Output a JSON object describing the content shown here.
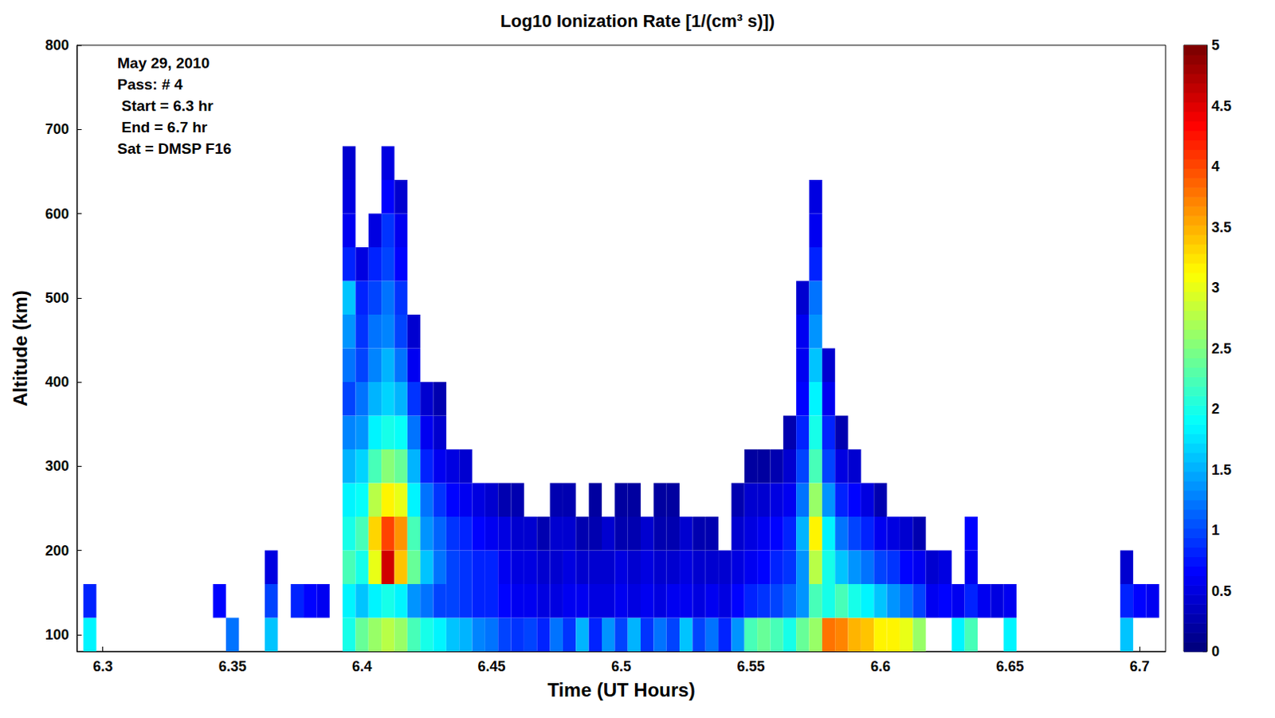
{
  "chart_data": {
    "type": "heatmap",
    "title": "Log10 Ionization Rate [1/(cm³ s)])",
    "xlabel": "Time (UT Hours)",
    "ylabel": "Altitude (km)",
    "annotations": [
      "May 29, 2010",
      "Pass: # 4",
      " Start = 6.3 hr",
      " End = 6.7 hr",
      "Sat = DMSP F16"
    ],
    "xlim": [
      6.29,
      6.71
    ],
    "xticks": [
      6.3,
      6.35,
      6.4,
      6.45,
      6.5,
      6.55,
      6.6,
      6.65,
      6.7
    ],
    "ylim": [
      80,
      800
    ],
    "yticks": [
      100,
      200,
      300,
      400,
      500,
      600,
      700,
      800
    ],
    "colorbar": {
      "range": [
        0,
        5
      ],
      "ticks": [
        0,
        0.5,
        1,
        1.5,
        2,
        2.5,
        3,
        3.5,
        4,
        4.5,
        5
      ]
    },
    "cells": [
      [
        6.295,
        100,
        1.8
      ],
      [
        6.295,
        140,
        0.8
      ],
      [
        6.345,
        140,
        0.7
      ],
      [
        6.35,
        100,
        1.2
      ],
      [
        6.365,
        100,
        1.6
      ],
      [
        6.365,
        140,
        1.0
      ],
      [
        6.365,
        180,
        0.5
      ],
      [
        6.375,
        140,
        0.8
      ],
      [
        6.38,
        140,
        0.7
      ],
      [
        6.385,
        140,
        0.6
      ],
      [
        6.395,
        100,
        2.0
      ],
      [
        6.395,
        140,
        1.8
      ],
      [
        6.395,
        180,
        2.2
      ],
      [
        6.395,
        220,
        2.0
      ],
      [
        6.395,
        260,
        1.8
      ],
      [
        6.395,
        300,
        1.5
      ],
      [
        6.395,
        340,
        1.3
      ],
      [
        6.395,
        380,
        1.0
      ],
      [
        6.395,
        420,
        1.2
      ],
      [
        6.395,
        460,
        1.4
      ],
      [
        6.395,
        500,
        1.6
      ],
      [
        6.395,
        540,
        0.8
      ],
      [
        6.395,
        580,
        0.6
      ],
      [
        6.395,
        620,
        0.5
      ],
      [
        6.395,
        660,
        0.4
      ],
      [
        6.4,
        100,
        2.4
      ],
      [
        6.4,
        140,
        1.6
      ],
      [
        6.4,
        180,
        2.0
      ],
      [
        6.4,
        220,
        2.2
      ],
      [
        6.4,
        260,
        1.9
      ],
      [
        6.4,
        300,
        1.7
      ],
      [
        6.4,
        340,
        1.4
      ],
      [
        6.4,
        380,
        1.2
      ],
      [
        6.4,
        420,
        1.0
      ],
      [
        6.4,
        460,
        0.9
      ],
      [
        6.4,
        500,
        0.8
      ],
      [
        6.4,
        540,
        0.5
      ],
      [
        6.405,
        100,
        2.6
      ],
      [
        6.405,
        140,
        1.8
      ],
      [
        6.405,
        180,
        3.0
      ],
      [
        6.405,
        220,
        3.3
      ],
      [
        6.405,
        260,
        2.8
      ],
      [
        6.405,
        300,
        2.2
      ],
      [
        6.405,
        340,
        1.8
      ],
      [
        6.405,
        380,
        1.5
      ],
      [
        6.405,
        420,
        1.3
      ],
      [
        6.405,
        460,
        1.2
      ],
      [
        6.405,
        500,
        1.0
      ],
      [
        6.405,
        540,
        0.8
      ],
      [
        6.405,
        580,
        0.5
      ],
      [
        6.41,
        100,
        2.8
      ],
      [
        6.41,
        140,
        2.0
      ],
      [
        6.41,
        180,
        4.6
      ],
      [
        6.41,
        220,
        4.0
      ],
      [
        6.41,
        260,
        3.2
      ],
      [
        6.41,
        300,
        2.5
      ],
      [
        6.41,
        340,
        2.0
      ],
      [
        6.41,
        380,
        1.7
      ],
      [
        6.41,
        420,
        1.5
      ],
      [
        6.41,
        460,
        1.3
      ],
      [
        6.41,
        500,
        1.2
      ],
      [
        6.41,
        540,
        1.0
      ],
      [
        6.41,
        580,
        0.9
      ],
      [
        6.41,
        620,
        0.7
      ],
      [
        6.41,
        660,
        0.5
      ],
      [
        6.415,
        100,
        2.6
      ],
      [
        6.415,
        140,
        1.8
      ],
      [
        6.415,
        180,
        3.4
      ],
      [
        6.415,
        220,
        3.6
      ],
      [
        6.415,
        260,
        3.0
      ],
      [
        6.415,
        300,
        2.4
      ],
      [
        6.415,
        340,
        1.9
      ],
      [
        6.415,
        380,
        1.5
      ],
      [
        6.415,
        420,
        1.2
      ],
      [
        6.415,
        460,
        1.0
      ],
      [
        6.415,
        500,
        0.9
      ],
      [
        6.415,
        540,
        0.7
      ],
      [
        6.415,
        580,
        0.6
      ],
      [
        6.415,
        620,
        0.4
      ],
      [
        6.42,
        100,
        2.2
      ],
      [
        6.42,
        140,
        1.4
      ],
      [
        6.42,
        180,
        2.4
      ],
      [
        6.42,
        220,
        2.2
      ],
      [
        6.42,
        260,
        1.8
      ],
      [
        6.42,
        300,
        1.5
      ],
      [
        6.42,
        340,
        1.2
      ],
      [
        6.42,
        380,
        0.9
      ],
      [
        6.42,
        420,
        0.6
      ],
      [
        6.42,
        460,
        0.4
      ],
      [
        6.425,
        100,
        2.0
      ],
      [
        6.425,
        140,
        1.2
      ],
      [
        6.425,
        180,
        1.6
      ],
      [
        6.425,
        220,
        1.4
      ],
      [
        6.425,
        260,
        1.2
      ],
      [
        6.425,
        300,
        0.8
      ],
      [
        6.425,
        340,
        0.6
      ],
      [
        6.425,
        380,
        0.4
      ],
      [
        6.43,
        100,
        1.8
      ],
      [
        6.43,
        140,
        1.0
      ],
      [
        6.43,
        180,
        1.2
      ],
      [
        6.43,
        220,
        1.1
      ],
      [
        6.43,
        260,
        0.9
      ],
      [
        6.43,
        300,
        0.6
      ],
      [
        6.43,
        340,
        0.4
      ],
      [
        6.43,
        380,
        0.3
      ],
      [
        6.435,
        100,
        1.6
      ],
      [
        6.435,
        140,
        1.0
      ],
      [
        6.435,
        180,
        1.0
      ],
      [
        6.435,
        220,
        0.9
      ],
      [
        6.435,
        260,
        0.7
      ],
      [
        6.435,
        300,
        0.5
      ],
      [
        6.44,
        100,
        1.5
      ],
      [
        6.44,
        140,
        0.9
      ],
      [
        6.44,
        180,
        0.9
      ],
      [
        6.44,
        220,
        0.8
      ],
      [
        6.44,
        260,
        0.6
      ],
      [
        6.44,
        300,
        0.4
      ],
      [
        6.445,
        100,
        1.3
      ],
      [
        6.445,
        140,
        0.8
      ],
      [
        6.445,
        180,
        0.8
      ],
      [
        6.445,
        220,
        0.7
      ],
      [
        6.445,
        260,
        0.5
      ],
      [
        6.45,
        100,
        1.2
      ],
      [
        6.45,
        140,
        0.8
      ],
      [
        6.45,
        180,
        0.8
      ],
      [
        6.45,
        220,
        0.6
      ],
      [
        6.45,
        260,
        0.4
      ],
      [
        6.455,
        100,
        1.0
      ],
      [
        6.455,
        140,
        0.7
      ],
      [
        6.455,
        180,
        0.6
      ],
      [
        6.455,
        220,
        0.5
      ],
      [
        6.455,
        260,
        0.3
      ],
      [
        6.46,
        100,
        0.9
      ],
      [
        6.46,
        140,
        0.6
      ],
      [
        6.46,
        180,
        0.5
      ],
      [
        6.46,
        220,
        0.4
      ],
      [
        6.46,
        260,
        0.3
      ],
      [
        6.465,
        100,
        1.0
      ],
      [
        6.465,
        140,
        0.6
      ],
      [
        6.465,
        180,
        0.5
      ],
      [
        6.465,
        220,
        0.4
      ],
      [
        6.47,
        100,
        0.8
      ],
      [
        6.47,
        140,
        0.5
      ],
      [
        6.47,
        180,
        0.4
      ],
      [
        6.47,
        220,
        0.3
      ],
      [
        6.475,
        100,
        1.2
      ],
      [
        6.475,
        140,
        0.5
      ],
      [
        6.475,
        180,
        0.4
      ],
      [
        6.475,
        220,
        0.4
      ],
      [
        6.475,
        260,
        0.3
      ],
      [
        6.48,
        100,
        0.9
      ],
      [
        6.48,
        140,
        0.6
      ],
      [
        6.48,
        180,
        0.5
      ],
      [
        6.48,
        220,
        0.4
      ],
      [
        6.48,
        260,
        0.3
      ],
      [
        6.485,
        100,
        1.5
      ],
      [
        6.485,
        140,
        0.6
      ],
      [
        6.485,
        180,
        0.4
      ],
      [
        6.485,
        220,
        0.3
      ],
      [
        6.49,
        100,
        0.8
      ],
      [
        6.49,
        140,
        0.5
      ],
      [
        6.49,
        180,
        0.4
      ],
      [
        6.49,
        220,
        0.3
      ],
      [
        6.49,
        260,
        0.2
      ],
      [
        6.495,
        100,
        1.4
      ],
      [
        6.495,
        140,
        0.5
      ],
      [
        6.495,
        180,
        0.4
      ],
      [
        6.495,
        220,
        0.4
      ],
      [
        6.5,
        100,
        1.0
      ],
      [
        6.5,
        140,
        0.6
      ],
      [
        6.5,
        180,
        0.5
      ],
      [
        6.5,
        220,
        0.3
      ],
      [
        6.5,
        260,
        0.2
      ],
      [
        6.505,
        100,
        1.5
      ],
      [
        6.505,
        140,
        0.5
      ],
      [
        6.505,
        180,
        0.4
      ],
      [
        6.505,
        220,
        0.3
      ],
      [
        6.505,
        260,
        0.2
      ],
      [
        6.51,
        100,
        0.9
      ],
      [
        6.51,
        140,
        0.6
      ],
      [
        6.51,
        180,
        0.5
      ],
      [
        6.51,
        220,
        0.4
      ],
      [
        6.515,
        100,
        1.2
      ],
      [
        6.515,
        140,
        0.5
      ],
      [
        6.515,
        180,
        0.4
      ],
      [
        6.515,
        220,
        0.3
      ],
      [
        6.515,
        260,
        0.2
      ],
      [
        6.52,
        100,
        1.0
      ],
      [
        6.52,
        140,
        0.6
      ],
      [
        6.52,
        180,
        0.4
      ],
      [
        6.52,
        220,
        0.3
      ],
      [
        6.52,
        260,
        0.2
      ],
      [
        6.525,
        100,
        1.6
      ],
      [
        6.525,
        140,
        0.6
      ],
      [
        6.525,
        180,
        0.5
      ],
      [
        6.525,
        220,
        0.4
      ],
      [
        6.53,
        100,
        1.0
      ],
      [
        6.53,
        140,
        0.5
      ],
      [
        6.53,
        180,
        0.4
      ],
      [
        6.53,
        220,
        0.3
      ],
      [
        6.535,
        100,
        1.2
      ],
      [
        6.535,
        140,
        0.6
      ],
      [
        6.535,
        180,
        0.4
      ],
      [
        6.535,
        220,
        0.3
      ],
      [
        6.54,
        100,
        0.8
      ],
      [
        6.54,
        140,
        0.5
      ],
      [
        6.54,
        180,
        0.4
      ],
      [
        6.545,
        100,
        1.4
      ],
      [
        6.545,
        140,
        0.7
      ],
      [
        6.545,
        180,
        0.5
      ],
      [
        6.545,
        220,
        0.4
      ],
      [
        6.545,
        260,
        0.3
      ],
      [
        6.55,
        100,
        2.2
      ],
      [
        6.55,
        140,
        0.8
      ],
      [
        6.55,
        180,
        0.6
      ],
      [
        6.55,
        220,
        0.5
      ],
      [
        6.55,
        260,
        0.4
      ],
      [
        6.55,
        300,
        0.2
      ],
      [
        6.555,
        100,
        2.4
      ],
      [
        6.555,
        140,
        0.9
      ],
      [
        6.555,
        180,
        0.7
      ],
      [
        6.555,
        220,
        0.6
      ],
      [
        6.555,
        260,
        0.4
      ],
      [
        6.555,
        300,
        0.2
      ],
      [
        6.56,
        100,
        2.2
      ],
      [
        6.56,
        140,
        1.0
      ],
      [
        6.56,
        180,
        0.8
      ],
      [
        6.56,
        220,
        0.7
      ],
      [
        6.56,
        260,
        0.5
      ],
      [
        6.56,
        300,
        0.3
      ],
      [
        6.565,
        100,
        2.0
      ],
      [
        6.565,
        140,
        1.1
      ],
      [
        6.565,
        180,
        0.9
      ],
      [
        6.565,
        220,
        0.8
      ],
      [
        6.565,
        260,
        0.6
      ],
      [
        6.565,
        300,
        0.4
      ],
      [
        6.565,
        340,
        0.3
      ],
      [
        6.57,
        100,
        2.4
      ],
      [
        6.57,
        140,
        1.4
      ],
      [
        6.57,
        180,
        1.4
      ],
      [
        6.57,
        220,
        1.5
      ],
      [
        6.57,
        260,
        1.2
      ],
      [
        6.57,
        300,
        1.0
      ],
      [
        6.57,
        340,
        0.8
      ],
      [
        6.57,
        380,
        0.7
      ],
      [
        6.57,
        420,
        0.6
      ],
      [
        6.57,
        460,
        0.6
      ],
      [
        6.57,
        500,
        0.4
      ],
      [
        6.575,
        100,
        2.6
      ],
      [
        6.575,
        140,
        2.2
      ],
      [
        6.575,
        180,
        2.8
      ],
      [
        6.575,
        220,
        3.2
      ],
      [
        6.575,
        260,
        2.6
      ],
      [
        6.575,
        300,
        2.2
      ],
      [
        6.575,
        340,
        2.0
      ],
      [
        6.575,
        380,
        1.8
      ],
      [
        6.575,
        420,
        1.6
      ],
      [
        6.575,
        460,
        1.4
      ],
      [
        6.575,
        500,
        1.2
      ],
      [
        6.575,
        540,
        0.8
      ],
      [
        6.575,
        580,
        0.6
      ],
      [
        6.575,
        620,
        0.5
      ],
      [
        6.58,
        100,
        3.8
      ],
      [
        6.58,
        140,
        2.0
      ],
      [
        6.58,
        180,
        2.0
      ],
      [
        6.58,
        220,
        1.8
      ],
      [
        6.58,
        260,
        1.4
      ],
      [
        6.58,
        300,
        1.0
      ],
      [
        6.58,
        340,
        0.8
      ],
      [
        6.58,
        380,
        0.6
      ],
      [
        6.58,
        420,
        0.4
      ],
      [
        6.585,
        100,
        3.7
      ],
      [
        6.585,
        140,
        2.2
      ],
      [
        6.585,
        180,
        1.6
      ],
      [
        6.585,
        220,
        1.2
      ],
      [
        6.585,
        260,
        0.8
      ],
      [
        6.585,
        300,
        0.5
      ],
      [
        6.585,
        340,
        0.3
      ],
      [
        6.59,
        100,
        3.5
      ],
      [
        6.59,
        140,
        2.0
      ],
      [
        6.59,
        180,
        1.4
      ],
      [
        6.59,
        220,
        1.0
      ],
      [
        6.59,
        260,
        0.7
      ],
      [
        6.59,
        300,
        0.4
      ],
      [
        6.595,
        100,
        3.4
      ],
      [
        6.595,
        140,
        1.8
      ],
      [
        6.595,
        180,
        1.2
      ],
      [
        6.595,
        220,
        0.8
      ],
      [
        6.595,
        260,
        0.5
      ],
      [
        6.6,
        100,
        3.2
      ],
      [
        6.6,
        140,
        1.6
      ],
      [
        6.6,
        180,
        1.0
      ],
      [
        6.6,
        220,
        0.6
      ],
      [
        6.6,
        260,
        0.3
      ],
      [
        6.605,
        100,
        3.2
      ],
      [
        6.605,
        140,
        1.4
      ],
      [
        6.605,
        180,
        0.9
      ],
      [
        6.605,
        220,
        0.5
      ],
      [
        6.61,
        100,
        3.0
      ],
      [
        6.61,
        140,
        1.2
      ],
      [
        6.61,
        180,
        0.7
      ],
      [
        6.61,
        220,
        0.4
      ],
      [
        6.615,
        100,
        2.6
      ],
      [
        6.615,
        140,
        1.0
      ],
      [
        6.615,
        180,
        0.6
      ],
      [
        6.615,
        220,
        0.3
      ],
      [
        6.62,
        140,
        0.6
      ],
      [
        6.62,
        180,
        0.4
      ],
      [
        6.625,
        140,
        0.7
      ],
      [
        6.625,
        180,
        0.5
      ],
      [
        6.63,
        100,
        1.8
      ],
      [
        6.63,
        140,
        0.6
      ],
      [
        6.635,
        100,
        2.2
      ],
      [
        6.635,
        140,
        0.8
      ],
      [
        6.635,
        180,
        0.6
      ],
      [
        6.635,
        220,
        0.7
      ],
      [
        6.64,
        140,
        0.6
      ],
      [
        6.645,
        140,
        0.5
      ],
      [
        6.65,
        100,
        1.8
      ],
      [
        6.65,
        140,
        0.6
      ],
      [
        6.695,
        100,
        1.6
      ],
      [
        6.695,
        140,
        0.8
      ],
      [
        6.695,
        180,
        0.4
      ],
      [
        6.7,
        140,
        0.7
      ],
      [
        6.705,
        140,
        0.6
      ]
    ]
  }
}
